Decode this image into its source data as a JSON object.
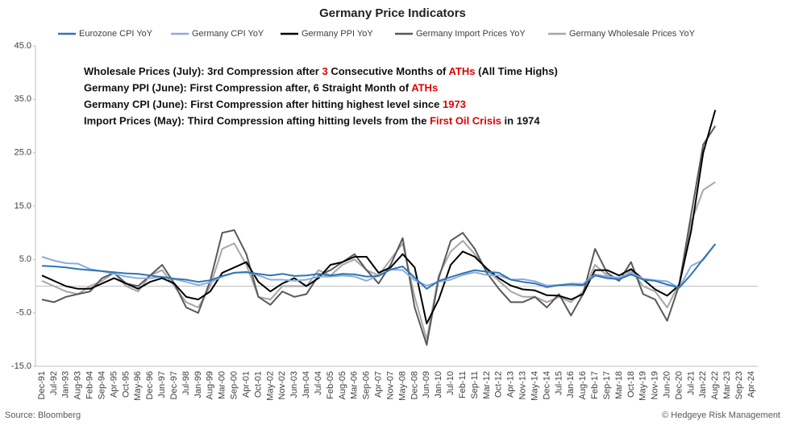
{
  "chart_data": {
    "type": "line",
    "title": "Germany Price Indicators",
    "x": [
      "Dec-91",
      "Jul-92",
      "Jan-93",
      "Aug-93",
      "Feb-94",
      "Sep-94",
      "Apr-95",
      "Oct-95",
      "May-96",
      "Dec-96",
      "Jun-97",
      "Dec-97",
      "Jul-98",
      "Jan-99",
      "Aug-99",
      "Mar-00",
      "Sep-00",
      "Apr-01",
      "Oct-01",
      "May-02",
      "Nov-02",
      "Jun-03",
      "Jan-04",
      "Jul-04",
      "Feb-05",
      "Aug-05",
      "Mar-06",
      "Sep-06",
      "Apr-07",
      "Nov-07",
      "May-08",
      "Dec-08",
      "Jun-09",
      "Jan-10",
      "Jul-10",
      "Feb-11",
      "Sep-11",
      "Mar-12",
      "Oct-12",
      "Apr-13",
      "Nov-13",
      "May-14",
      "Dec-14",
      "Jul-15",
      "Jan-16",
      "Aug-16",
      "Feb-17",
      "Sep-17",
      "Mar-18",
      "Oct-18",
      "May-19",
      "Nov-19",
      "Jun-20",
      "Dec-20",
      "Jul-21",
      "Jan-22",
      "Aug-22",
      "Mar-23",
      "Sep-23",
      "Apr-24"
    ],
    "series": [
      {
        "name": "Eurozone CPI YoY",
        "color": "#2e75b6",
        "values": [
          3.8,
          3.7,
          3.5,
          3.2,
          3.0,
          2.8,
          2.6,
          2.4,
          2.3,
          2.0,
          1.7,
          1.4,
          1.2,
          0.8,
          1.1,
          1.9,
          2.5,
          2.6,
          2.3,
          2.0,
          2.3,
          1.9,
          2.0,
          2.3,
          2.0,
          2.3,
          2.2,
          1.8,
          1.9,
          3.1,
          3.7,
          1.6,
          -0.5,
          1.0,
          1.7,
          2.4,
          3.0,
          2.7,
          2.5,
          1.2,
          0.8,
          0.5,
          -0.2,
          0.2,
          0.3,
          0.2,
          2.0,
          1.5,
          1.3,
          2.2,
          1.2,
          1.0,
          0.3,
          -0.3,
          2.2,
          5.1,
          7.9,
          null,
          null,
          null
        ]
      },
      {
        "name": "Germany CPI YoY",
        "color": "#8faadc",
        "values": [
          5.5,
          4.8,
          4.3,
          4.2,
          3.2,
          2.8,
          2.3,
          1.8,
          1.5,
          1.5,
          1.8,
          1.3,
          0.8,
          0.2,
          0.7,
          1.8,
          2.5,
          2.7,
          2.0,
          1.2,
          1.2,
          1.0,
          1.2,
          1.8,
          1.8,
          2.0,
          1.8,
          1.0,
          2.0,
          3.1,
          3.0,
          1.1,
          0.1,
          0.8,
          1.2,
          2.1,
          2.6,
          2.1,
          2.0,
          1.2,
          1.3,
          0.9,
          0.1,
          0.2,
          0.5,
          0.4,
          2.2,
          1.8,
          1.6,
          2.5,
          1.4,
          1.1,
          0.9,
          -0.3,
          3.8,
          4.9,
          7.9,
          null,
          null,
          null
        ]
      },
      {
        "name": "Germany PPI YoY",
        "color": "#000000",
        "values": [
          2,
          1,
          0,
          -0.5,
          -0.5,
          0.5,
          1.5,
          0.5,
          -0.5,
          0.8,
          1.5,
          0.5,
          -2,
          -2.5,
          -1,
          2.5,
          3.5,
          4.5,
          0.8,
          -1,
          0.5,
          1.5,
          0,
          1.5,
          4,
          4.5,
          5.5,
          5.5,
          2.5,
          3.5,
          6,
          3.5,
          -7,
          -2.5,
          4,
          6.5,
          5.5,
          3.3,
          1.5,
          0.1,
          -0.6,
          -0.8,
          -1.7,
          -1.8,
          -2.5,
          -1.5,
          3,
          3,
          2,
          3.2,
          1.3,
          -0.6,
          -1.8,
          0.2,
          10.4,
          25,
          33,
          null,
          null,
          null
        ]
      },
      {
        "name": "Germany Import Prices YoY",
        "color": "#595959",
        "values": [
          -2.5,
          -3,
          -2,
          -1.5,
          -1,
          1.5,
          2.5,
          0.5,
          0,
          2,
          4,
          0.5,
          -4,
          -5,
          1,
          10,
          10.5,
          6,
          -2,
          -3.5,
          -1,
          -2,
          -1.5,
          2,
          3,
          4.5,
          6,
          3,
          0.5,
          4,
          9,
          -4,
          -11,
          1.5,
          8.5,
          10,
          7,
          2.5,
          -0.5,
          -3,
          -3,
          -2,
          -4,
          -1.5,
          -5.5,
          -1.5,
          7,
          2.5,
          1,
          4.5,
          -1.5,
          -2.5,
          -6.5,
          0.2,
          13.5,
          26.5,
          30,
          null,
          null,
          null
        ]
      },
      {
        "name": "Germany Wholesale Prices YoY",
        "color": "#a6a6a6",
        "values": [
          1,
          0,
          -1,
          -1.5,
          0,
          1,
          2.5,
          0,
          -1,
          2,
          3,
          0,
          -3,
          -4,
          0,
          7,
          8,
          4,
          -2,
          -2.5,
          0,
          0,
          0,
          3,
          2,
          4,
          5,
          3,
          2,
          5,
          8,
          -2,
          -10,
          2,
          6.5,
          8.5,
          6,
          3,
          1,
          -1,
          -2,
          -2,
          -3,
          -2,
          -3,
          -1,
          4,
          2,
          1,
          3,
          0,
          -1,
          -4,
          0.5,
          12,
          18,
          19.5,
          null,
          null,
          null
        ]
      }
    ],
    "ylim": [
      -15,
      45
    ],
    "yticks": [
      {
        "value": 45,
        "label": "45.0"
      },
      {
        "value": 35,
        "label": "35.0"
      },
      {
        "value": 25,
        "label": "25.0"
      },
      {
        "value": 15,
        "label": "15.0"
      },
      {
        "value": 5,
        "label": "5.0"
      },
      {
        "value": -5,
        "label": "-5.0"
      },
      {
        "value": -15,
        "label": "-15.0"
      }
    ],
    "legend": "top",
    "annotations": [
      [
        "Wholesale Prices (July): 3rd Compression after ",
        "3",
        " Consecutive Months of ",
        "ATHs",
        " (All Time Highs)"
      ],
      [
        "Germany PPI (June): First Compression after, 6 Straight Month of ",
        "ATHs"
      ],
      [
        "Germany CPI (June): First Compression after hitting highest level since ",
        "1973"
      ],
      [
        "Import Prices (May): Third Compression afting hitting levels from the ",
        "First Oil Crisis",
        " in 1974"
      ]
    ],
    "highlight_color": "#e00000",
    "source": "Source: Bloomberg",
    "credit": "© Hedgeye Risk Management"
  }
}
